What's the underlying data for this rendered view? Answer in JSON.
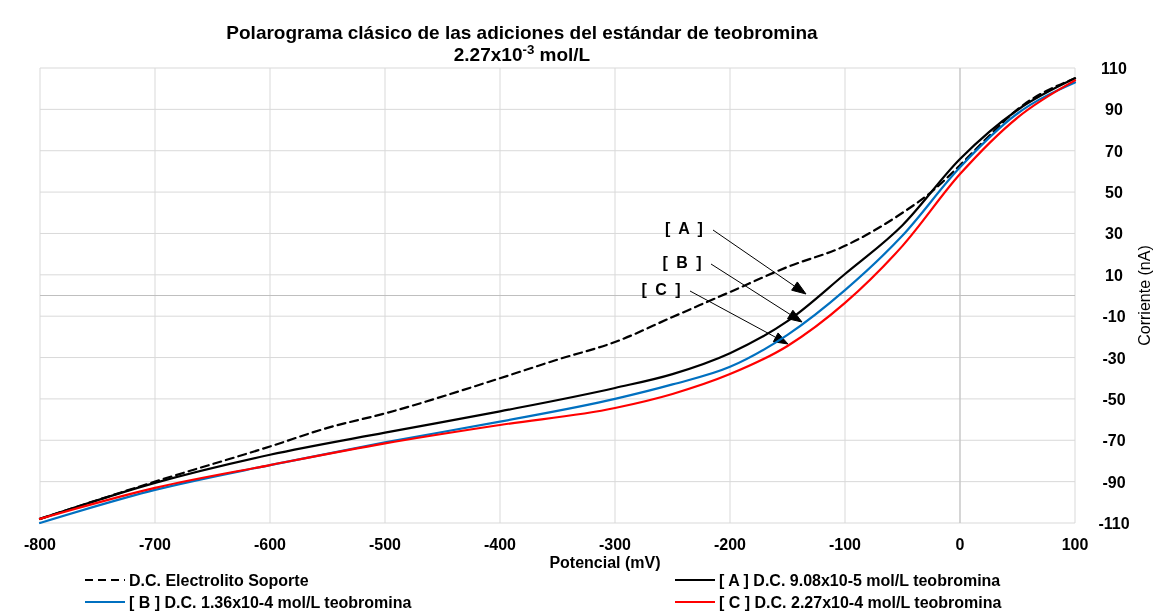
{
  "chart_data": {
    "type": "line",
    "title": "Polarograma clásico de las adiciones del estándar de teobromina\n2.27x10$^{-3}$ mol/L",
    "xlabel": "Potencial (mV)",
    "ylabel": "Corriente (nA)",
    "x": [
      -800,
      -700,
      -600,
      -550,
      -500,
      -400,
      -350,
      -300,
      -250,
      -200,
      -150,
      -100,
      -50,
      -25,
      0,
      25,
      50,
      100
    ],
    "xlim": [
      -800,
      100
    ],
    "xticks": [
      -800,
      -700,
      -600,
      -500,
      -400,
      -300,
      -200,
      -100,
      0,
      100
    ],
    "ylim": [
      -110,
      110
    ],
    "yticks": [
      -110,
      -90,
      -70,
      -50,
      -30,
      -10,
      10,
      30,
      50,
      70,
      90,
      110
    ],
    "grid": true,
    "legend": "bottom",
    "marker": "none",
    "series": [
      {
        "name": "D.C. Electrolito Soporte",
        "color": "#000000",
        "line_style": "dashed",
        "values": [
          -108,
          -90,
          -73,
          -64,
          -57,
          -40,
          -31,
          -22.5,
          -10.4,
          1.7,
          13.8,
          24,
          40,
          50,
          63,
          77,
          90,
          105
        ]
      },
      {
        "name": "[ A ] D.C. 9.08x10-5 mol/L teobromina",
        "color": "#000000",
        "line_style": "solid",
        "x": [
          -800,
          -700,
          -600,
          -500,
          -400,
          -300,
          -250,
          -200,
          -150,
          -100,
          -50,
          0,
          50,
          100
        ],
        "values": [
          -108,
          -90.6,
          -77,
          -66.3,
          -56,
          -44.7,
          -38,
          -27.9,
          -12.4,
          10.4,
          34,
          66,
          89.7,
          105
        ]
      },
      {
        "name": "[ B ] D.C. 1.36x10-4 mol/L teobromina",
        "color": "#0070c0",
        "line_style": "solid",
        "x": [
          -800,
          -700,
          -600,
          -500,
          -400,
          -300,
          -250,
          -200,
          -150,
          -100,
          -50,
          0,
          50,
          100
        ],
        "values": [
          -110,
          -94,
          -82,
          -71,
          -61,
          -50,
          -43,
          -34.5,
          -19,
          2.6,
          29,
          62,
          88,
          103
        ]
      },
      {
        "name": "[ C ] D.C. 2.27x10-4 mol/L teobromina",
        "color": "#ff0000",
        "line_style": "solid",
        "x": [
          -800,
          -700,
          -600,
          -500,
          -400,
          -300,
          -250,
          -200,
          -150,
          -100,
          -50,
          0,
          50,
          100
        ],
        "values": [
          -108,
          -93,
          -82,
          -71.5,
          -62.6,
          -54.4,
          -47.6,
          -38,
          -24.4,
          -3.6,
          24,
          58.7,
          86,
          104
        ]
      }
    ],
    "annotations": [
      "[ A ]",
      "[ B ]",
      "[ C ]"
    ]
  }
}
